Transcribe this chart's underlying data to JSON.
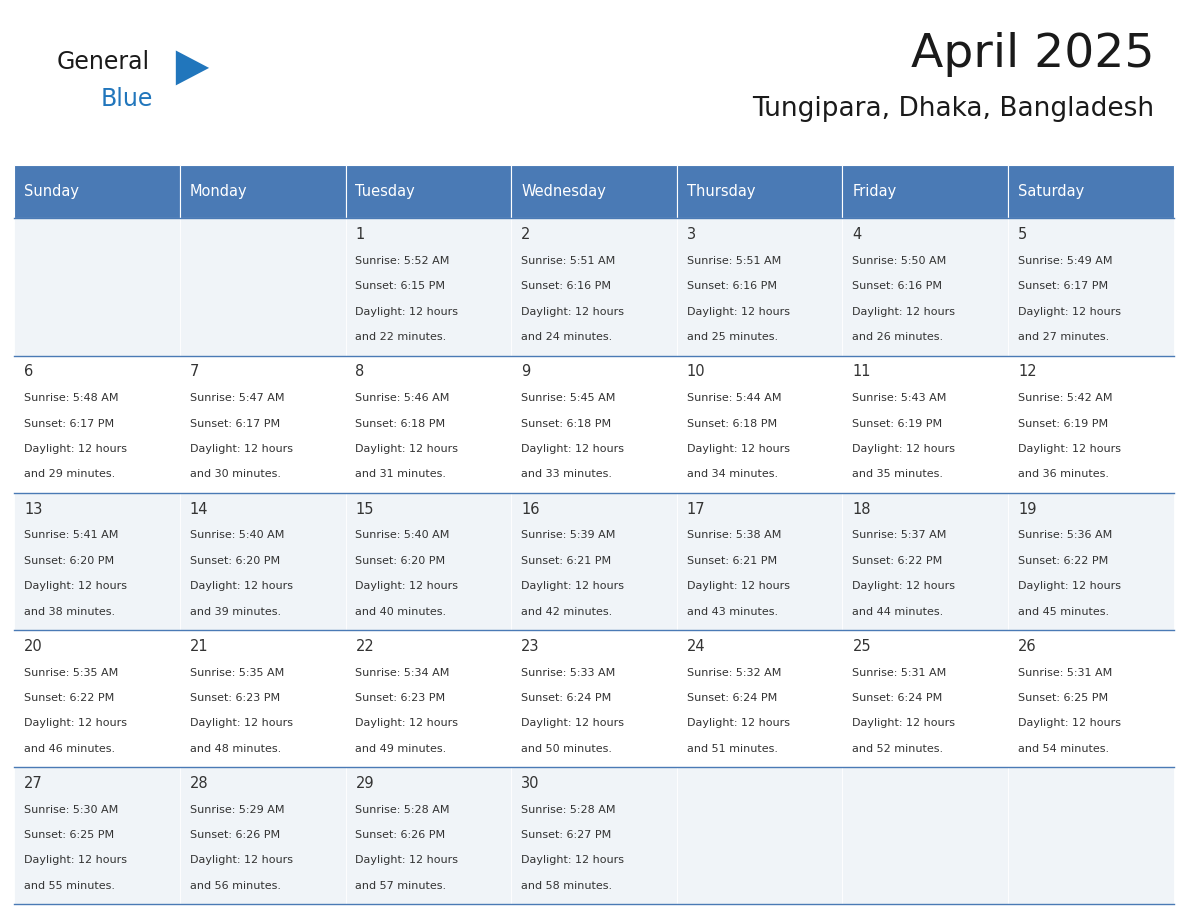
{
  "title": "April 2025",
  "subtitle": "Tungipara, Dhaka, Bangladesh",
  "header_bg": "#4a7ab5",
  "header_text": "#ffffff",
  "row_bg_light": "#f0f4f8",
  "row_bg_white": "#ffffff",
  "cell_border": "#4a7ab5",
  "day_names": [
    "Sunday",
    "Monday",
    "Tuesday",
    "Wednesday",
    "Thursday",
    "Friday",
    "Saturday"
  ],
  "title_color": "#1a1a1a",
  "subtitle_color": "#1a1a1a",
  "text_color": "#333333",
  "general_color": "#1a1a1a",
  "blue_color": "#2176bc",
  "logo_triangle_color": "#2176bc",
  "days": [
    {
      "date": 1,
      "col": 2,
      "row": 0,
      "sunrise": "5:52 AM",
      "sunset": "6:15 PM",
      "daylight": "12 hours and 22 minutes."
    },
    {
      "date": 2,
      "col": 3,
      "row": 0,
      "sunrise": "5:51 AM",
      "sunset": "6:16 PM",
      "daylight": "12 hours and 24 minutes."
    },
    {
      "date": 3,
      "col": 4,
      "row": 0,
      "sunrise": "5:51 AM",
      "sunset": "6:16 PM",
      "daylight": "12 hours and 25 minutes."
    },
    {
      "date": 4,
      "col": 5,
      "row": 0,
      "sunrise": "5:50 AM",
      "sunset": "6:16 PM",
      "daylight": "12 hours and 26 minutes."
    },
    {
      "date": 5,
      "col": 6,
      "row": 0,
      "sunrise": "5:49 AM",
      "sunset": "6:17 PM",
      "daylight": "12 hours and 27 minutes."
    },
    {
      "date": 6,
      "col": 0,
      "row": 1,
      "sunrise": "5:48 AM",
      "sunset": "6:17 PM",
      "daylight": "12 hours and 29 minutes."
    },
    {
      "date": 7,
      "col": 1,
      "row": 1,
      "sunrise": "5:47 AM",
      "sunset": "6:17 PM",
      "daylight": "12 hours and 30 minutes."
    },
    {
      "date": 8,
      "col": 2,
      "row": 1,
      "sunrise": "5:46 AM",
      "sunset": "6:18 PM",
      "daylight": "12 hours and 31 minutes."
    },
    {
      "date": 9,
      "col": 3,
      "row": 1,
      "sunrise": "5:45 AM",
      "sunset": "6:18 PM",
      "daylight": "12 hours and 33 minutes."
    },
    {
      "date": 10,
      "col": 4,
      "row": 1,
      "sunrise": "5:44 AM",
      "sunset": "6:18 PM",
      "daylight": "12 hours and 34 minutes."
    },
    {
      "date": 11,
      "col": 5,
      "row": 1,
      "sunrise": "5:43 AM",
      "sunset": "6:19 PM",
      "daylight": "12 hours and 35 minutes."
    },
    {
      "date": 12,
      "col": 6,
      "row": 1,
      "sunrise": "5:42 AM",
      "sunset": "6:19 PM",
      "daylight": "12 hours and 36 minutes."
    },
    {
      "date": 13,
      "col": 0,
      "row": 2,
      "sunrise": "5:41 AM",
      "sunset": "6:20 PM",
      "daylight": "12 hours and 38 minutes."
    },
    {
      "date": 14,
      "col": 1,
      "row": 2,
      "sunrise": "5:40 AM",
      "sunset": "6:20 PM",
      "daylight": "12 hours and 39 minutes."
    },
    {
      "date": 15,
      "col": 2,
      "row": 2,
      "sunrise": "5:40 AM",
      "sunset": "6:20 PM",
      "daylight": "12 hours and 40 minutes."
    },
    {
      "date": 16,
      "col": 3,
      "row": 2,
      "sunrise": "5:39 AM",
      "sunset": "6:21 PM",
      "daylight": "12 hours and 42 minutes."
    },
    {
      "date": 17,
      "col": 4,
      "row": 2,
      "sunrise": "5:38 AM",
      "sunset": "6:21 PM",
      "daylight": "12 hours and 43 minutes."
    },
    {
      "date": 18,
      "col": 5,
      "row": 2,
      "sunrise": "5:37 AM",
      "sunset": "6:22 PM",
      "daylight": "12 hours and 44 minutes."
    },
    {
      "date": 19,
      "col": 6,
      "row": 2,
      "sunrise": "5:36 AM",
      "sunset": "6:22 PM",
      "daylight": "12 hours and 45 minutes."
    },
    {
      "date": 20,
      "col": 0,
      "row": 3,
      "sunrise": "5:35 AM",
      "sunset": "6:22 PM",
      "daylight": "12 hours and 46 minutes."
    },
    {
      "date": 21,
      "col": 1,
      "row": 3,
      "sunrise": "5:35 AM",
      "sunset": "6:23 PM",
      "daylight": "12 hours and 48 minutes."
    },
    {
      "date": 22,
      "col": 2,
      "row": 3,
      "sunrise": "5:34 AM",
      "sunset": "6:23 PM",
      "daylight": "12 hours and 49 minutes."
    },
    {
      "date": 23,
      "col": 3,
      "row": 3,
      "sunrise": "5:33 AM",
      "sunset": "6:24 PM",
      "daylight": "12 hours and 50 minutes."
    },
    {
      "date": 24,
      "col": 4,
      "row": 3,
      "sunrise": "5:32 AM",
      "sunset": "6:24 PM",
      "daylight": "12 hours and 51 minutes."
    },
    {
      "date": 25,
      "col": 5,
      "row": 3,
      "sunrise": "5:31 AM",
      "sunset": "6:24 PM",
      "daylight": "12 hours and 52 minutes."
    },
    {
      "date": 26,
      "col": 6,
      "row": 3,
      "sunrise": "5:31 AM",
      "sunset": "6:25 PM",
      "daylight": "12 hours and 54 minutes."
    },
    {
      "date": 27,
      "col": 0,
      "row": 4,
      "sunrise": "5:30 AM",
      "sunset": "6:25 PM",
      "daylight": "12 hours and 55 minutes."
    },
    {
      "date": 28,
      "col": 1,
      "row": 4,
      "sunrise": "5:29 AM",
      "sunset": "6:26 PM",
      "daylight": "12 hours and 56 minutes."
    },
    {
      "date": 29,
      "col": 2,
      "row": 4,
      "sunrise": "5:28 AM",
      "sunset": "6:26 PM",
      "daylight": "12 hours and 57 minutes."
    },
    {
      "date": 30,
      "col": 3,
      "row": 4,
      "sunrise": "5:28 AM",
      "sunset": "6:27 PM",
      "daylight": "12 hours and 58 minutes."
    }
  ]
}
